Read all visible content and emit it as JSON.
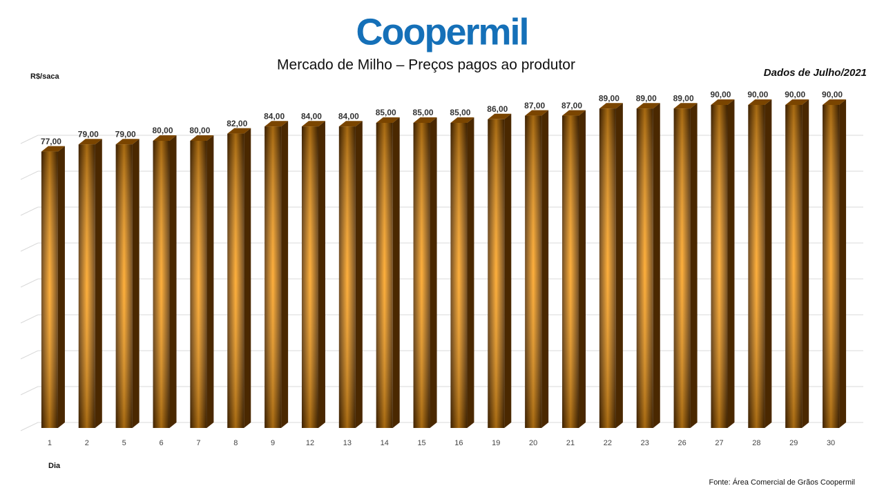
{
  "logo": "Coopermil",
  "chart_data": {
    "type": "bar3d",
    "title": "Mercado de Milho – Preços pagos ao produtor",
    "subtitle": "Dados de Julho/2021",
    "y_label": "R$/saca",
    "x_label": "Dia",
    "source": "Fonte: Área Comercial de Grãos Coopermil",
    "categories": [
      "1",
      "2",
      "5",
      "6",
      "7",
      "8",
      "9",
      "12",
      "13",
      "14",
      "15",
      "16",
      "19",
      "20",
      "21",
      "22",
      "23",
      "26",
      "27",
      "28",
      "29",
      "30"
    ],
    "values": [
      77,
      79,
      79,
      80,
      80,
      82,
      84,
      84,
      84,
      85,
      85,
      85,
      86,
      87,
      87,
      89,
      89,
      89,
      90,
      90,
      90,
      90
    ],
    "value_labels": [
      "77,00",
      "79,00",
      "79,00",
      "80,00",
      "80,00",
      "82,00",
      "84,00",
      "84,00",
      "84,00",
      "85,00",
      "85,00",
      "85,00",
      "86,00",
      "87,00",
      "87,00",
      "89,00",
      "89,00",
      "89,00",
      "90,00",
      "90,00",
      "90,00",
      "90,00"
    ],
    "color": "#f39a12",
    "ylim": [
      0,
      100
    ],
    "yticks": [
      0,
      10,
      20,
      30,
      40,
      50,
      60,
      70,
      80
    ],
    "grid": true
  }
}
